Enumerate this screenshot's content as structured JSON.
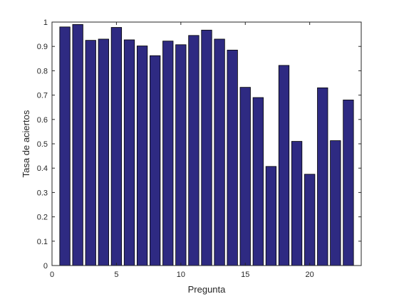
{
  "chart_data": {
    "type": "bar",
    "title": "",
    "xlabel": "Pregunta",
    "ylabel": "Tasa de aciertos",
    "x": [
      1,
      2,
      3,
      4,
      5,
      6,
      7,
      8,
      9,
      10,
      11,
      12,
      13,
      14,
      15,
      16,
      17,
      18,
      19,
      20,
      21,
      22,
      23
    ],
    "values": [
      0.98,
      0.99,
      0.925,
      0.93,
      0.978,
      0.927,
      0.902,
      0.862,
      0.922,
      0.907,
      0.945,
      0.967,
      0.93,
      0.885,
      0.732,
      0.69,
      0.407,
      0.822,
      0.51,
      0.375,
      0.73,
      0.513,
      0.68
    ],
    "xlim": [
      0,
      24
    ],
    "ylim": [
      0,
      1
    ],
    "xticks": [
      "0",
      "5",
      "10",
      "15",
      "20"
    ],
    "yticks": [
      "0",
      "0.1",
      "0.2",
      "0.3",
      "0.4",
      "0.5",
      "0.6",
      "0.7",
      "0.8",
      "0.9",
      "1"
    ],
    "bar_color": "#2e2a82",
    "edge_color": "#000000",
    "grid": false,
    "legend": "none"
  }
}
